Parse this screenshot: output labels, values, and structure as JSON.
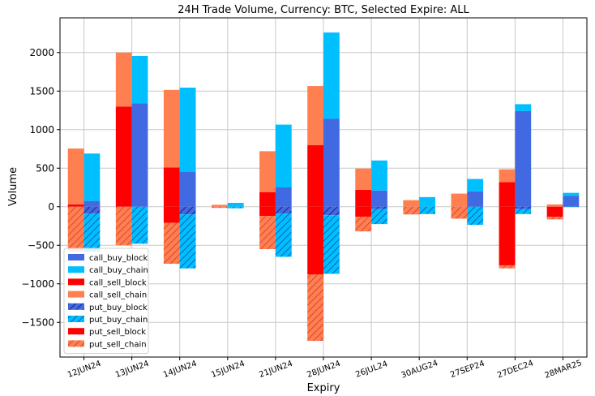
{
  "chart_data": {
    "type": "bar",
    "title": "24H Trade Volume, Currency: BTC, Selected Expire: ALL",
    "xlabel": "Expiry",
    "ylabel": "Volume",
    "ylim": [
      -1950,
      2450
    ],
    "yticks": [
      -1500,
      -1000,
      -500,
      0,
      500,
      1000,
      1500,
      2000
    ],
    "ytick_labels": [
      "−1500",
      "−1000",
      "−500",
      "0",
      "500",
      "1000",
      "1500",
      "2000"
    ],
    "grid": true,
    "legend_position": "bottom-left",
    "categories": [
      "12JUN24",
      "13JUN24",
      "14JUN24",
      "15JUN24",
      "21JUN24",
      "28JUN24",
      "26JUL24",
      "30AUG24",
      "27SEP24",
      "27DEC24",
      "28MAR25"
    ],
    "series": [
      {
        "name": "call_buy_block",
        "color": "#4169e1",
        "pattern": "solid",
        "group": "buy",
        "values": [
          75,
          1340,
          450,
          0,
          250,
          1140,
          210,
          0,
          200,
          1240,
          140
        ]
      },
      {
        "name": "call_buy_chain",
        "color": "#00bfff",
        "pattern": "solid",
        "group": "buy",
        "values": [
          615,
          615,
          1095,
          50,
          815,
          1120,
          390,
          125,
          160,
          90,
          40
        ]
      },
      {
        "name": "call_sell_block",
        "color": "#ff0000",
        "pattern": "solid",
        "group": "sell",
        "values": [
          30,
          1300,
          510,
          0,
          190,
          800,
          220,
          0,
          0,
          320,
          0
        ]
      },
      {
        "name": "call_sell_chain",
        "color": "#ff7f50",
        "pattern": "solid",
        "group": "sell",
        "values": [
          725,
          700,
          1005,
          25,
          530,
          765,
          275,
          85,
          170,
          165,
          30
        ]
      },
      {
        "name": "put_buy_block",
        "color": "#4169e1",
        "pattern": "hatched",
        "group": "buy",
        "values": [
          -90,
          0,
          -100,
          0,
          -90,
          -110,
          -30,
          0,
          0,
          -30,
          0
        ]
      },
      {
        "name": "put_buy_chain",
        "color": "#00bfff",
        "pattern": "hatched",
        "group": "buy",
        "values": [
          -490,
          -480,
          -700,
          -20,
          -560,
          -760,
          -195,
          -95,
          -235,
          -65,
          -5
        ]
      },
      {
        "name": "put_sell_block",
        "color": "#ff0000",
        "pattern": "solid",
        "group": "sell",
        "values": [
          0,
          0,
          -210,
          0,
          -120,
          -880,
          -130,
          0,
          0,
          -760,
          -130
        ]
      },
      {
        "name": "put_sell_chain",
        "color": "#ff7f50",
        "pattern": "hatched",
        "group": "sell",
        "values": [
          -580,
          -500,
          -530,
          -15,
          -430,
          -860,
          -190,
          -100,
          -155,
          -40,
          -35
        ]
      }
    ]
  }
}
